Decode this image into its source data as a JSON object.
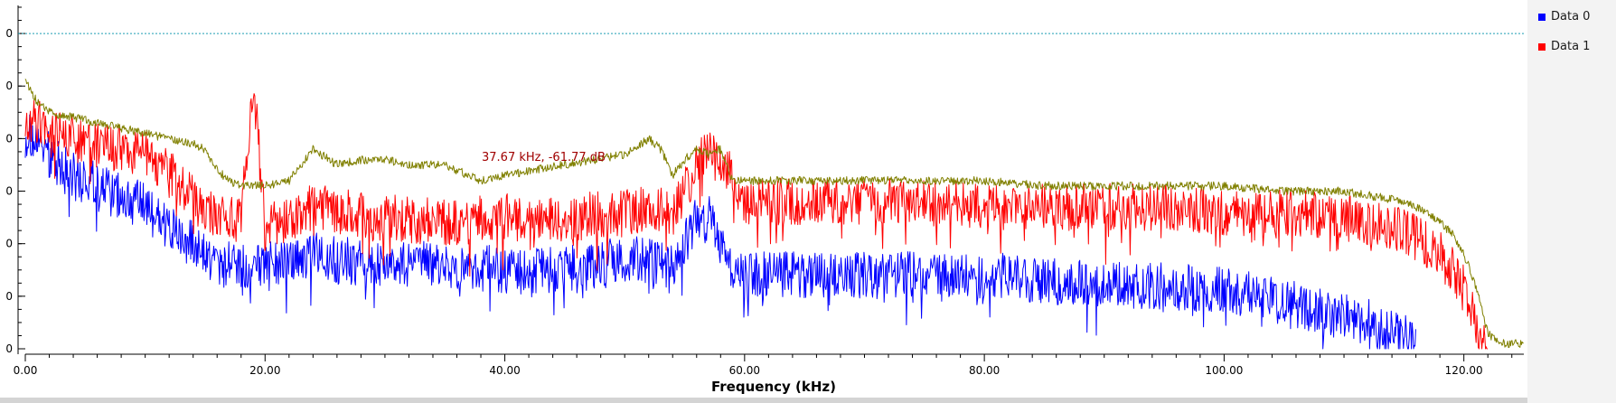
{
  "chart_data": {
    "type": "line",
    "xlabel": "Frequency (kHz)",
    "ylabel": "",
    "xlim": [
      0,
      125
    ],
    "x_ticks": [
      0,
      20,
      40,
      60,
      80,
      100,
      120
    ],
    "x_tick_labels": [
      "0.00",
      "20.00",
      "40.00",
      "60.00",
      "80.00",
      "100.00",
      "120.00"
    ],
    "ylim": [
      -140,
      -10
    ],
    "y_ticks": [
      -20,
      -40,
      -60,
      -80,
      -100,
      -120,
      -140
    ],
    "y_tick_labels": [
      "0",
      "0",
      "0",
      "0",
      "0",
      "0",
      "0"
    ],
    "reference_line": -20,
    "annotation": "37.67 kHz, -61.77 dB",
    "legend_position": "top-right",
    "series": [
      {
        "name": "Data 0",
        "color": "#0000ff",
        "x": [
          0,
          1,
          2,
          3,
          4,
          5,
          6,
          7,
          8,
          9,
          10,
          11,
          12,
          13,
          14,
          15,
          16,
          18,
          19,
          20,
          22,
          24,
          26,
          30,
          35,
          40,
          45,
          50,
          52,
          54,
          55,
          56,
          57,
          58,
          59,
          60,
          65,
          70,
          75,
          80,
          85,
          90,
          95,
          100,
          105,
          110,
          112,
          114,
          116
        ],
        "y": [
          -58,
          -62,
          -66,
          -70,
          -74,
          -76,
          -78,
          -80,
          -82,
          -84,
          -86,
          -90,
          -94,
          -98,
          -100,
          -104,
          -108,
          -108,
          -108,
          -108,
          -108,
          -104,
          -106,
          -108,
          -108,
          -110,
          -110,
          -106,
          -106,
          -110,
          -100,
          -90,
          -90,
          -100,
          -112,
          -112,
          -112,
          -112,
          -112,
          -112,
          -114,
          -116,
          -116,
          -118,
          -122,
          -128,
          -130,
          -134,
          -138
        ]
      },
      {
        "name": "Data 1",
        "color": "#ff0000",
        "x": [
          0,
          1,
          2,
          4,
          6,
          8,
          10,
          12,
          14,
          16,
          18,
          19,
          20,
          22,
          24,
          26,
          30,
          35,
          40,
          45,
          50,
          52,
          54,
          55,
          56,
          57,
          58,
          59,
          60,
          65,
          70,
          75,
          80,
          85,
          90,
          95,
          100,
          105,
          110,
          112,
          114,
          116,
          118,
          120,
          121,
          122
        ],
        "y": [
          -52,
          -54,
          -58,
          -60,
          -62,
          -64,
          -66,
          -72,
          -82,
          -90,
          -92,
          -38,
          -92,
          -92,
          -86,
          -88,
          -90,
          -92,
          -90,
          -90,
          -88,
          -86,
          -88,
          -80,
          -70,
          -66,
          -68,
          -74,
          -84,
          -84,
          -84,
          -84,
          -86,
          -86,
          -86,
          -86,
          -88,
          -88,
          -90,
          -92,
          -94,
          -98,
          -104,
          -116,
          -130,
          -140
        ]
      },
      {
        "name": "",
        "color": "#808000",
        "x": [
          0,
          1,
          2,
          4,
          6,
          8,
          10,
          12,
          14,
          15,
          16,
          17,
          18,
          19,
          20,
          22,
          24,
          26,
          28,
          30,
          32,
          35,
          38,
          40,
          45,
          50,
          52,
          53,
          54,
          55,
          56,
          57,
          58,
          59,
          60,
          65,
          70,
          75,
          80,
          85,
          90,
          95,
          100,
          105,
          110,
          115,
          117,
          119,
          120,
          121,
          122,
          123,
          124,
          125
        ],
        "y": [
          -38,
          -46,
          -50,
          -52,
          -54,
          -56,
          -58,
          -60,
          -62,
          -64,
          -72,
          -76,
          -78,
          -78,
          -78,
          -76,
          -64,
          -70,
          -68,
          -68,
          -70,
          -70,
          -76,
          -74,
          -70,
          -66,
          -60,
          -64,
          -74,
          -68,
          -64,
          -66,
          -64,
          -76,
          -76,
          -76,
          -76,
          -76,
          -76,
          -78,
          -78,
          -78,
          -78,
          -80,
          -80,
          -84,
          -88,
          -96,
          -104,
          -116,
          -134,
          -138,
          -138,
          -138
        ]
      }
    ]
  }
}
